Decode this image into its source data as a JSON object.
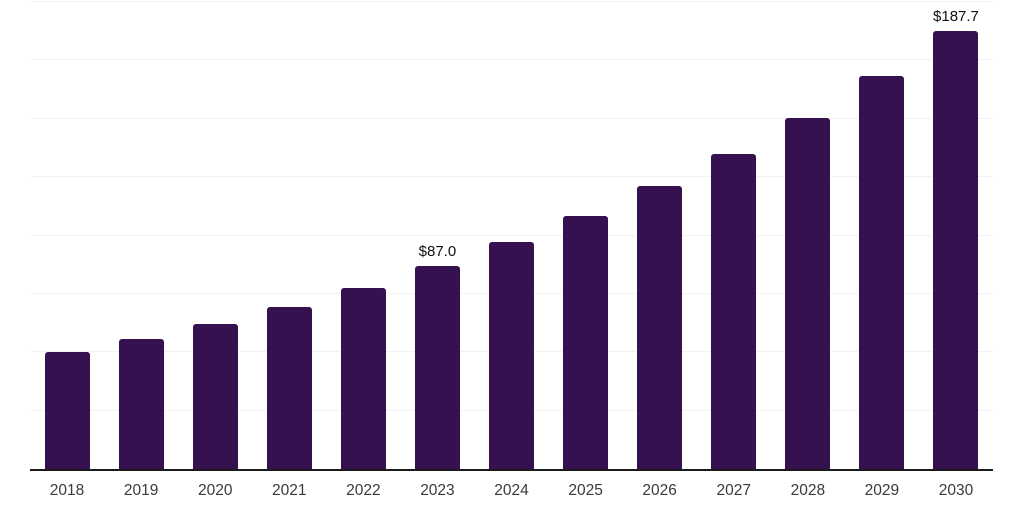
{
  "chart_data": {
    "type": "bar",
    "title": "",
    "xlabel": "",
    "ylabel": "",
    "categories": [
      "2018",
      "2019",
      "2020",
      "2021",
      "2022",
      "2023",
      "2024",
      "2025",
      "2026",
      "2027",
      "2028",
      "2029",
      "2030"
    ],
    "values": [
      50.0,
      55.5,
      62.1,
      69.3,
      77.6,
      87.0,
      97.2,
      108.2,
      121.4,
      134.9,
      150.5,
      168.5,
      187.7
    ],
    "data_labels": {
      "2023": "$87.0",
      "2030": "$187.7"
    },
    "ylim": [
      0,
      200
    ],
    "gridline_step": 25,
    "grid": true,
    "legend": "none",
    "y_axis_labels_visible": false,
    "colors": {
      "bar": "#36114F",
      "axis_line": "#1A1A1A",
      "gridline": "#F2F2F5",
      "tick_label": "#3A3A3A",
      "data_label": "#111111",
      "background": "#FFFFFF"
    }
  }
}
